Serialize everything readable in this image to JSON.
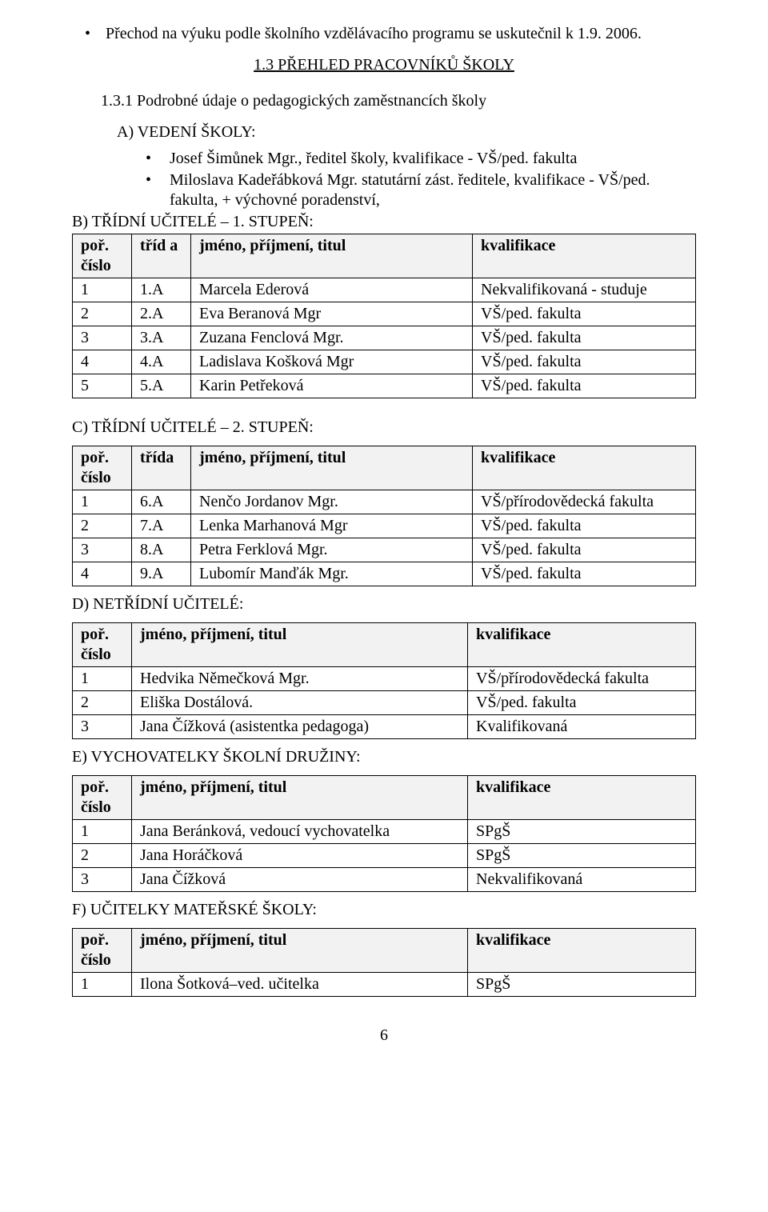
{
  "top_bullet": "Přechod na výuku podle školního vzdělávacího programu se uskutečnil k 1.9. 2006.",
  "heading": "1.3 PŘEHLED PRACOVNÍKŮ ŠKOLY",
  "subheading": "1.3.1 Podrobné údaje o pedagogických zaměstnancích školy",
  "sectionA": {
    "letter": "A)  VEDENÍ ŠKOLY:",
    "items": [
      "Josef Šimůnek Mgr., ředitel školy, kvalifikace -  VŠ/ped. fakulta",
      "Miloslava Kadeřábková Mgr. statutární zást. ředitele, kvalifikace - VŠ/ped. fakulta, + výchovné poradenství,"
    ]
  },
  "sectionB": {
    "intro": "B)  TŘÍDNÍ UČITELÉ – 1. STUPEŇ:",
    "headers": [
      "poř. číslo",
      "tříd a",
      "jméno, příjmení, titul",
      "kvalifikace"
    ],
    "rows": [
      [
        "1",
        "1.A",
        "Marcela Ederová",
        "Nekvalifikovaná - studuje"
      ],
      [
        "2",
        "2.A",
        "Eva Beranová Mgr",
        "VŠ/ped. fakulta"
      ],
      [
        "3",
        "3.A",
        "Zuzana Fenclová Mgr.",
        "VŠ/ped. fakulta"
      ],
      [
        "4",
        "4.A",
        "Ladislava Košková Mgr",
        "VŠ/ped. fakulta"
      ],
      [
        "5",
        "5.A",
        "Karin Petřeková",
        "VŠ/ped. fakulta"
      ]
    ]
  },
  "sectionC": {
    "title": "C) TŘÍDNÍ UČITELÉ – 2. STUPEŇ:",
    "headers": [
      "poř. číslo",
      "třída",
      "jméno, příjmení, titul",
      "kvalifikace"
    ],
    "rows": [
      [
        "1",
        "6.A",
        "Nenčo Jordanov Mgr.",
        "VŠ/přírodovědecká fakulta"
      ],
      [
        "2",
        "7.A",
        "Lenka Marhanová Mgr",
        "VŠ/ped. fakulta"
      ],
      [
        "3",
        "8.A",
        "Petra Ferklová Mgr.",
        "VŠ/ped. fakulta"
      ],
      [
        "4",
        "9.A",
        "Lubomír Manďák Mgr.",
        "VŠ/ped. fakulta"
      ]
    ]
  },
  "sectionD": {
    "title": "D) NETŘÍDNÍ UČITELÉ:",
    "headers": [
      "poř. číslo",
      "jméno, příjmení, titul",
      "kvalifikace"
    ],
    "rows": [
      [
        "1",
        "Hedvika Němečková Mgr.",
        "VŠ/přírodovědecká fakulta"
      ],
      [
        "2",
        "Eliška Dostálová.",
        "VŠ/ped. fakulta"
      ],
      [
        "3",
        "Jana Čížková (asistentka pedagoga)",
        "Kvalifikovaná"
      ]
    ]
  },
  "sectionE": {
    "title": "E) VYCHOVATELKY ŠKOLNÍ DRUŽINY:",
    "headers": [
      "poř. číslo",
      "jméno, příjmení, titul",
      "kvalifikace"
    ],
    "rows": [
      [
        "1",
        "Jana Beránková, vedoucí vychovatelka",
        "SPgŠ"
      ],
      [
        "2",
        "Jana Horáčková",
        "SPgŠ"
      ],
      [
        "3",
        "Jana Čížková",
        "Nekvalifikovaná"
      ]
    ]
  },
  "sectionF": {
    "title": "F) UČITELKY MATEŘSKÉ ŠKOLY:",
    "headers": [
      "poř. číslo",
      "jméno, příjmení, titul",
      "kvalifikace"
    ],
    "rows": [
      [
        "1",
        "Ilona Šotková–ved. učitelka",
        "SPgŠ"
      ]
    ]
  },
  "page_number": "6"
}
